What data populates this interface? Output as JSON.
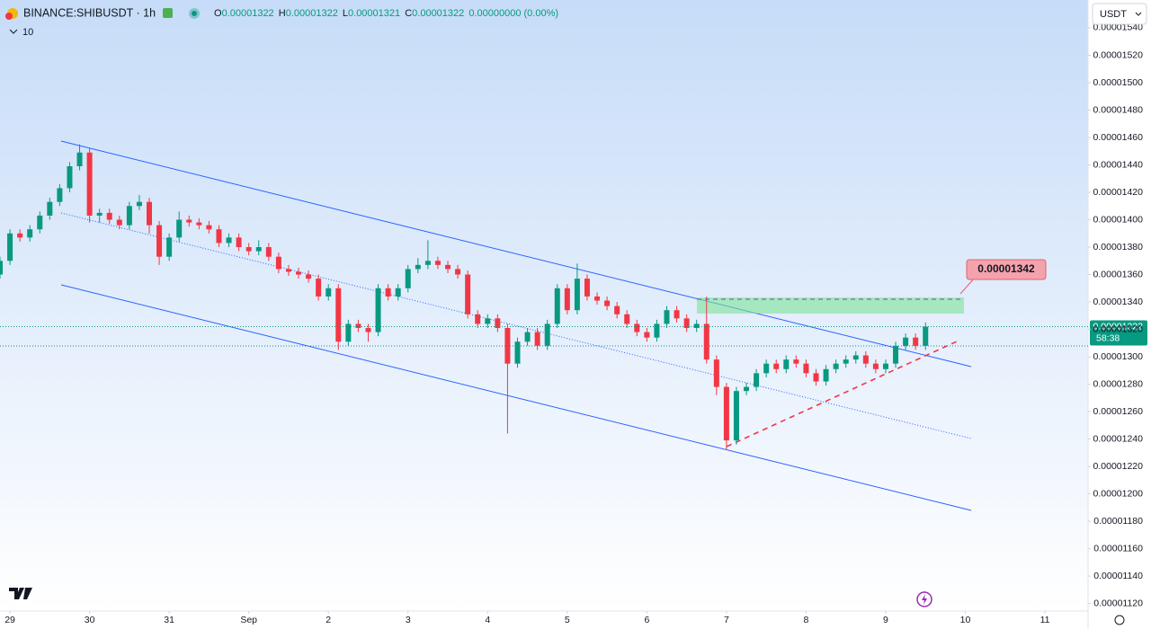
{
  "toolbar": {
    "symbol": "BINANCE:SHIBUSDT · 1h",
    "o_key": "O",
    "o_val": "0.00001322",
    "h_key": "H",
    "h_val": "0.00001322",
    "l_key": "L",
    "l_val": "0.00001321",
    "c_key": "C",
    "c_val": "0.00001322",
    "change": "0.00000000 (0.00%)",
    "volume": "10",
    "currency": "USDT"
  },
  "chart_data": {
    "type": "candlestick",
    "up_color": "#089981",
    "down_color": "#f23645",
    "x": [
      -3,
      0,
      3,
      6,
      9,
      12,
      15,
      18,
      21,
      24,
      27,
      30,
      33,
      36,
      39,
      42,
      45,
      48,
      51,
      54,
      57,
      60,
      63,
      66,
      69,
      72,
      75,
      78,
      81,
      84,
      87,
      90,
      93,
      96,
      99,
      102,
      105,
      108,
      111,
      114,
      117,
      120,
      123,
      126,
      129,
      132,
      135,
      138,
      141,
      144,
      147,
      150,
      153,
      156,
      159,
      162,
      165,
      168,
      171,
      174,
      177,
      180,
      183,
      186,
      189,
      192,
      195,
      198,
      201,
      204,
      207,
      210,
      213,
      216,
      219,
      222,
      225,
      228,
      231,
      234,
      237,
      240,
      243,
      246,
      249,
      252,
      255,
      258,
      261,
      264,
      267,
      270,
      273,
      276
    ],
    "open": [
      1.36e-05,
      1.37e-05,
      1.39e-05,
      1.387e-05,
      1.393e-05,
      1.403e-05,
      1.413e-05,
      1.423e-05,
      1.439e-05,
      1.449e-05,
      1.403e-05,
      1.405e-05,
      1.4e-05,
      1.396e-05,
      1.41e-05,
      1.413e-05,
      1.396e-05,
      1.373e-05,
      1.387e-05,
      1.4e-05,
      1.398e-05,
      1.396e-05,
      1.393e-05,
      1.383e-05,
      1.387e-05,
      1.38e-05,
      1.377e-05,
      1.38e-05,
      1.373e-05,
      1.364e-05,
      1.362e-05,
      1.36e-05,
      1.357e-05,
      1.344e-05,
      1.35e-05,
      1.311e-05,
      1.324e-05,
      1.321e-05,
      1.318e-05,
      1.35e-05,
      1.344e-05,
      1.35e-05,
      1.364e-05,
      1.367e-05,
      1.37e-05,
      1.367e-05,
      1.364e-05,
      1.36e-05,
      1.331e-05,
      1.324e-05,
      1.328e-05,
      1.321e-05,
      1.295e-05,
      1.311e-05,
      1.318e-05,
      1.308e-05,
      1.324e-05,
      1.35e-05,
      1.334e-05,
      1.357e-05,
      1.344e-05,
      1.341e-05,
      1.337e-05,
      1.331e-05,
      1.324e-05,
      1.318e-05,
      1.314e-05,
      1.324e-05,
      1.334e-05,
      1.328e-05,
      1.321e-05,
      1.324e-05,
      1.298e-05,
      1.278e-05,
      1.239e-05,
      1.275e-05,
      1.278e-05,
      1.288e-05,
      1.295e-05,
      1.291e-05,
      1.298e-05,
      1.295e-05,
      1.288e-05,
      1.282e-05,
      1.291e-05,
      1.295e-05,
      1.298e-05,
      1.301e-05,
      1.295e-05,
      1.291e-05,
      1.295e-05,
      1.308e-05,
      1.314e-05,
      1.308e-05
    ],
    "high": [
      1.373e-05,
      1.393e-05,
      1.393e-05,
      1.396e-05,
      1.406e-05,
      1.416e-05,
      1.426e-05,
      1.442e-05,
      1.455e-05,
      1.452e-05,
      1.408e-05,
      1.408e-05,
      1.403e-05,
      1.413e-05,
      1.418e-05,
      1.416e-05,
      1.399e-05,
      1.39e-05,
      1.406e-05,
      1.403e-05,
      1.401e-05,
      1.399e-05,
      1.396e-05,
      1.39e-05,
      1.39e-05,
      1.383e-05,
      1.385e-05,
      1.383e-05,
      1.376e-05,
      1.367e-05,
      1.365e-05,
      1.363e-05,
      1.36e-05,
      1.353e-05,
      1.353e-05,
      1.327e-05,
      1.327e-05,
      1.324e-05,
      1.353e-05,
      1.353e-05,
      1.353e-05,
      1.367e-05,
      1.372e-05,
      1.385e-05,
      1.373e-05,
      1.37e-05,
      1.367e-05,
      1.363e-05,
      1.334e-05,
      1.331e-05,
      1.331e-05,
      1.324e-05,
      1.314e-05,
      1.321e-05,
      1.321e-05,
      1.327e-05,
      1.353e-05,
      1.353e-05,
      1.368e-05,
      1.36e-05,
      1.347e-05,
      1.344e-05,
      1.34e-05,
      1.334e-05,
      1.327e-05,
      1.321e-05,
      1.327e-05,
      1.337e-05,
      1.337e-05,
      1.331e-05,
      1.327e-05,
      1.344e-05,
      1.301e-05,
      1.281e-05,
      1.278e-05,
      1.281e-05,
      1.291e-05,
      1.298e-05,
      1.298e-05,
      1.301e-05,
      1.301e-05,
      1.298e-05,
      1.291e-05,
      1.294e-05,
      1.298e-05,
      1.301e-05,
      1.304e-05,
      1.304e-05,
      1.298e-05,
      1.298e-05,
      1.311e-05,
      1.317e-05,
      1.317e-05,
      1.325e-05
    ],
    "low": [
      1.357e-05,
      1.367e-05,
      1.384e-05,
      1.384e-05,
      1.39e-05,
      1.4e-05,
      1.41e-05,
      1.42e-05,
      1.436e-05,
      1.398e-05,
      1.398e-05,
      1.397e-05,
      1.393e-05,
      1.393e-05,
      1.407e-05,
      1.39e-05,
      1.367e-05,
      1.37e-05,
      1.384e-05,
      1.395e-05,
      1.393e-05,
      1.39e-05,
      1.38e-05,
      1.38e-05,
      1.377e-05,
      1.374e-05,
      1.374e-05,
      1.37e-05,
      1.361e-05,
      1.359e-05,
      1.357e-05,
      1.354e-05,
      1.341e-05,
      1.341e-05,
      1.305e-05,
      1.308e-05,
      1.318e-05,
      1.311e-05,
      1.315e-05,
      1.341e-05,
      1.341e-05,
      1.347e-05,
      1.361e-05,
      1.364e-05,
      1.364e-05,
      1.361e-05,
      1.357e-05,
      1.328e-05,
      1.321e-05,
      1.321e-05,
      1.318e-05,
      1.244e-05,
      1.292e-05,
      1.308e-05,
      1.305e-05,
      1.305e-05,
      1.321e-05,
      1.331e-05,
      1.331e-05,
      1.341e-05,
      1.338e-05,
      1.334e-05,
      1.328e-05,
      1.321e-05,
      1.315e-05,
      1.311e-05,
      1.311e-05,
      1.321e-05,
      1.325e-05,
      1.318e-05,
      1.318e-05,
      1.295e-05,
      1.272e-05,
      1.232e-05,
      1.236e-05,
      1.272e-05,
      1.275e-05,
      1.285e-05,
      1.288e-05,
      1.288e-05,
      1.292e-05,
      1.285e-05,
      1.279e-05,
      1.279e-05,
      1.288e-05,
      1.292e-05,
      1.295e-05,
      1.292e-05,
      1.288e-05,
      1.288e-05,
      1.292e-05,
      1.305e-05,
      1.305e-05,
      1.305e-05
    ],
    "close": [
      1.37e-05,
      1.39e-05,
      1.387e-05,
      1.393e-05,
      1.403e-05,
      1.413e-05,
      1.423e-05,
      1.439e-05,
      1.449e-05,
      1.403e-05,
      1.405e-05,
      1.4e-05,
      1.396e-05,
      1.41e-05,
      1.413e-05,
      1.396e-05,
      1.373e-05,
      1.387e-05,
      1.4e-05,
      1.398e-05,
      1.396e-05,
      1.393e-05,
      1.383e-05,
      1.387e-05,
      1.38e-05,
      1.377e-05,
      1.38e-05,
      1.373e-05,
      1.364e-05,
      1.362e-05,
      1.36e-05,
      1.357e-05,
      1.344e-05,
      1.35e-05,
      1.311e-05,
      1.324e-05,
      1.321e-05,
      1.318e-05,
      1.35e-05,
      1.344e-05,
      1.35e-05,
      1.364e-05,
      1.367e-05,
      1.37e-05,
      1.367e-05,
      1.364e-05,
      1.36e-05,
      1.331e-05,
      1.324e-05,
      1.328e-05,
      1.321e-05,
      1.295e-05,
      1.311e-05,
      1.318e-05,
      1.308e-05,
      1.324e-05,
      1.35e-05,
      1.334e-05,
      1.357e-05,
      1.344e-05,
      1.341e-05,
      1.337e-05,
      1.331e-05,
      1.324e-05,
      1.318e-05,
      1.314e-05,
      1.324e-05,
      1.334e-05,
      1.328e-05,
      1.321e-05,
      1.324e-05,
      1.298e-05,
      1.278e-05,
      1.239e-05,
      1.275e-05,
      1.278e-05,
      1.288e-05,
      1.295e-05,
      1.291e-05,
      1.298e-05,
      1.295e-05,
      1.288e-05,
      1.282e-05,
      1.291e-05,
      1.295e-05,
      1.298e-05,
      1.301e-05,
      1.295e-05,
      1.291e-05,
      1.295e-05,
      1.308e-05,
      1.314e-05,
      1.308e-05,
      1.322e-05
    ],
    "xlim": [
      -3,
      325
    ],
    "xticks": [
      {
        "value": 0,
        "label": "29"
      },
      {
        "value": 24,
        "label": "30"
      },
      {
        "value": 48,
        "label": "31"
      },
      {
        "value": 72,
        "label": "Sep"
      },
      {
        "value": 96,
        "label": "2"
      },
      {
        "value": 120,
        "label": "3"
      },
      {
        "value": 144,
        "label": "4"
      },
      {
        "value": 168,
        "label": "5"
      },
      {
        "value": 192,
        "label": "6"
      },
      {
        "value": 216,
        "label": "7"
      },
      {
        "value": 240,
        "label": "8"
      },
      {
        "value": 264,
        "label": "9"
      },
      {
        "value": 288,
        "label": "10"
      },
      {
        "value": 312,
        "label": "11"
      }
    ],
    "ylim": [
      1.1145e-05,
      1.5603e-05
    ],
    "yticks": [
      {
        "value": 1.12e-05,
        "label": "0.00001120"
      },
      {
        "value": 1.14e-05,
        "label": "0.00001140"
      },
      {
        "value": 1.16e-05,
        "label": "0.00001160"
      },
      {
        "value": 1.18e-05,
        "label": "0.00001180"
      },
      {
        "value": 1.2e-05,
        "label": "0.00001200"
      },
      {
        "value": 1.22e-05,
        "label": "0.00001220"
      },
      {
        "value": 1.24e-05,
        "label": "0.00001240"
      },
      {
        "value": 1.26e-05,
        "label": "0.00001260"
      },
      {
        "value": 1.28e-05,
        "label": "0.00001280"
      },
      {
        "value": 1.3e-05,
        "label": "0.00001300"
      },
      {
        "value": 1.32e-05,
        "label": "0.00001320"
      },
      {
        "value": 1.34e-05,
        "label": "0.00001340"
      },
      {
        "value": 1.36e-05,
        "label": "0.00001360"
      },
      {
        "value": 1.38e-05,
        "label": "0.00001380"
      },
      {
        "value": 1.4e-05,
        "label": "0.00001400"
      },
      {
        "value": 1.42e-05,
        "label": "0.00001420"
      },
      {
        "value": 1.44e-05,
        "label": "0.00001440"
      },
      {
        "value": 1.46e-05,
        "label": "0.00001460"
      },
      {
        "value": 1.48e-05,
        "label": "0.00001480"
      },
      {
        "value": 1.5e-05,
        "label": "0.00001500"
      },
      {
        "value": 1.52e-05,
        "label": "0.00001520"
      },
      {
        "value": 1.54e-05,
        "label": "0.00001540"
      }
    ],
    "last_price": {
      "value": 1.322e-05,
      "label": "0.00001322",
      "countdown": "58:38"
    },
    "target": {
      "value": 1.342e-05,
      "label": "0.00001342"
    }
  }
}
